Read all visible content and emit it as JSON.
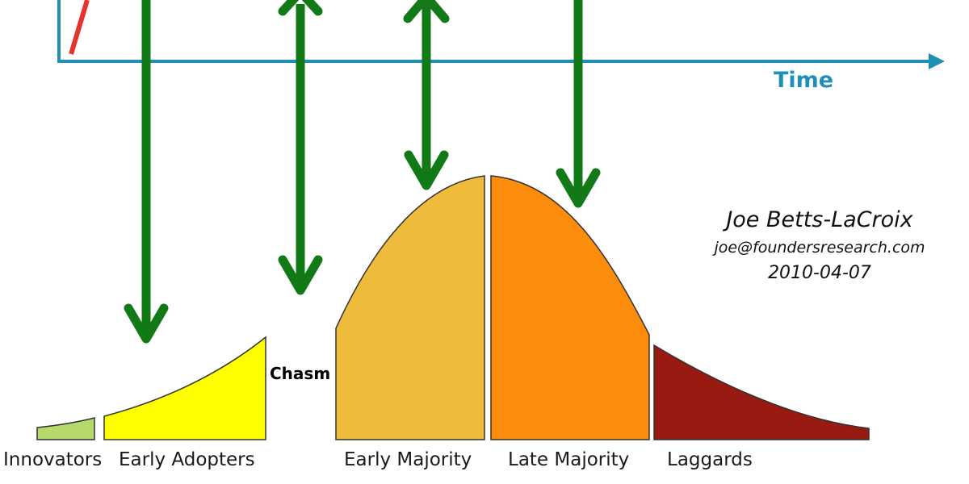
{
  "axis": {
    "label": "Time",
    "color": "#1f8fb5"
  },
  "trend_line_color": "#e8332a",
  "arrow_color": "#117a17",
  "chasm_label": "Chasm",
  "segments": [
    {
      "key": "innovators",
      "label": "Innovators",
      "color": "#b5d96b"
    },
    {
      "key": "early-adopters",
      "label": "Early Adopters",
      "color": "#ffff00"
    },
    {
      "key": "early-majority",
      "label": "Early Majority",
      "color": "#efbb3b"
    },
    {
      "key": "late-majority",
      "label": "Late Majority",
      "color": "#fb8c0c"
    },
    {
      "key": "laggards",
      "label": "Laggards",
      "color": "#981a10"
    }
  ],
  "author": {
    "name": "Joe Betts-LaCroix",
    "email": "joe@foundersresearch.com",
    "date": "2010-04-07"
  }
}
